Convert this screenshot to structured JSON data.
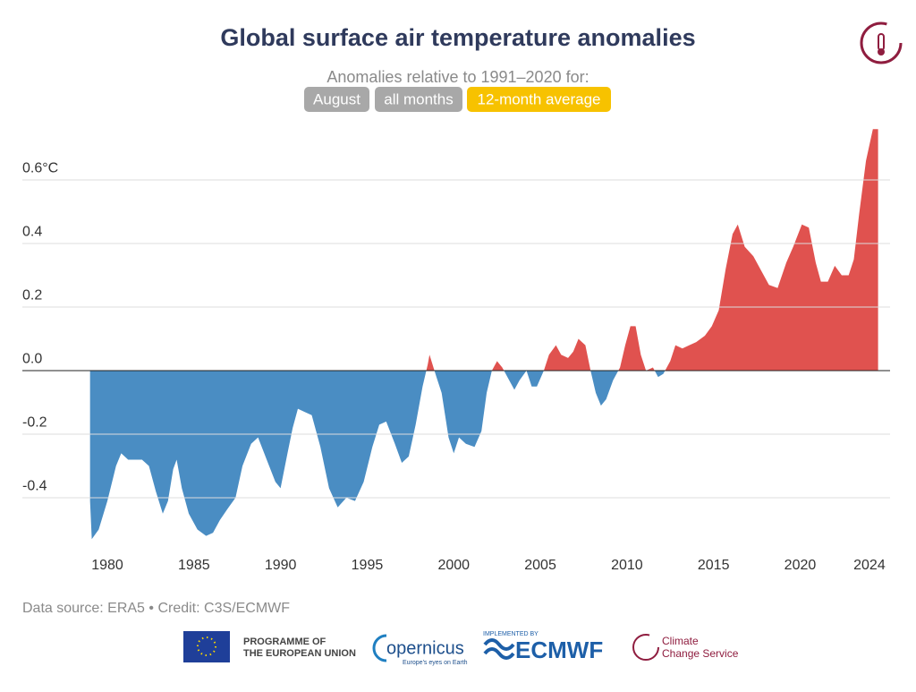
{
  "chart_data": {
    "type": "area",
    "title": "Global surface air temperature anomalies",
    "subtitle": "Anomalies relative to 1991–2020 for:",
    "buttons": [
      "August",
      "all months",
      "12-month average"
    ],
    "x": [
      1979.0,
      1979.1,
      1979.5,
      1980.0,
      1980.5,
      1980.8,
      1981.2,
      1981.6,
      1982.0,
      1982.4,
      1982.8,
      1983.2,
      1983.5,
      1983.8,
      1984.0,
      1984.3,
      1984.7,
      1985.2,
      1985.7,
      1986.1,
      1986.5,
      1987.0,
      1987.4,
      1987.8,
      1988.3,
      1988.7,
      1989.2,
      1989.7,
      1990.0,
      1990.4,
      1990.7,
      1991.0,
      1991.4,
      1991.8,
      1992.3,
      1992.8,
      1993.3,
      1993.8,
      1994.3,
      1994.8,
      1995.3,
      1995.7,
      1996.1,
      1996.6,
      1997.0,
      1997.4,
      1997.8,
      1998.2,
      1998.5,
      1998.6,
      1999.0,
      1999.3,
      1999.7,
      2000.0,
      2000.3,
      2000.7,
      2001.2,
      2001.6,
      2001.9,
      2002.2,
      2002.5,
      2002.8,
      2003.2,
      2003.5,
      2003.8,
      2004.2,
      2004.5,
      2004.8,
      2005.2,
      2005.5,
      2005.9,
      2006.2,
      2006.6,
      2006.9,
      2007.2,
      2007.6,
      2007.9,
      2008.2,
      2008.5,
      2008.8,
      2009.2,
      2009.6,
      2009.9,
      2010.2,
      2010.5,
      2010.8,
      2011.1,
      2011.5,
      2011.8,
      2012.1,
      2012.5,
      2012.8,
      2013.2,
      2013.6,
      2014.0,
      2014.5,
      2014.9,
      2015.3,
      2015.7,
      2016.1,
      2016.4,
      2016.8,
      2017.3,
      2017.7,
      2018.2,
      2018.7,
      2019.2,
      2019.6,
      2020.1,
      2020.5,
      2020.9,
      2021.2,
      2021.6,
      2022.0,
      2022.4,
      2022.8,
      2023.1,
      2023.4,
      2023.8,
      2024.2,
      2024.5
    ],
    "values": [
      -0.41,
      -0.53,
      -0.5,
      -0.41,
      -0.3,
      -0.26,
      -0.28,
      -0.28,
      -0.28,
      -0.3,
      -0.38,
      -0.45,
      -0.41,
      -0.31,
      -0.28,
      -0.37,
      -0.45,
      -0.5,
      -0.52,
      -0.51,
      -0.47,
      -0.43,
      -0.4,
      -0.3,
      -0.23,
      -0.21,
      -0.28,
      -0.35,
      -0.37,
      -0.26,
      -0.18,
      -0.12,
      -0.13,
      -0.14,
      -0.24,
      -0.37,
      -0.43,
      -0.4,
      -0.41,
      -0.35,
      -0.24,
      -0.17,
      -0.16,
      -0.23,
      -0.29,
      -0.27,
      -0.17,
      -0.05,
      0.02,
      0.05,
      -0.02,
      -0.07,
      -0.21,
      -0.26,
      -0.21,
      -0.23,
      -0.24,
      -0.19,
      -0.07,
      0.0,
      0.03,
      0.01,
      -0.03,
      -0.06,
      -0.03,
      0.0,
      -0.05,
      -0.05,
      0.0,
      0.05,
      0.08,
      0.05,
      0.04,
      0.06,
      0.1,
      0.08,
      0.0,
      -0.07,
      -0.11,
      -0.09,
      -0.03,
      0.01,
      0.08,
      0.14,
      0.14,
      0.05,
      0.0,
      0.01,
      -0.02,
      -0.01,
      0.03,
      0.08,
      0.07,
      0.08,
      0.09,
      0.11,
      0.14,
      0.19,
      0.32,
      0.43,
      0.46,
      0.39,
      0.36,
      0.32,
      0.27,
      0.26,
      0.34,
      0.39,
      0.46,
      0.45,
      0.34,
      0.28,
      0.28,
      0.33,
      0.3,
      0.3,
      0.35,
      0.49,
      0.66,
      0.76,
      0.76
    ],
    "colors": {
      "positive": "#e0524f",
      "negative": "#4a8dc3"
    },
    "xlim": [
      1975.35,
      2025.45
    ],
    "xticks": [
      1980,
      1985,
      1990,
      1995,
      2000,
      2005,
      2010,
      2015,
      2020,
      2024
    ],
    "ylim": [
      -0.552,
      0.772
    ],
    "yticks": [
      -0.4,
      -0.2,
      {
        "value": 0,
        "label": "0.0"
      },
      0.2,
      0.4,
      {
        "value": 0.6,
        "label": "0.6°C"
      }
    ],
    "grid": true,
    "source": "Data source: ERA5 • Credit: C3S/ECMWF"
  },
  "footer": {
    "eu": [
      "PROGRAMME OF",
      "THE EUROPEAN UNION"
    ],
    "copernicus": "opernicus",
    "copernicus_tagline": "Europe's eyes on Earth",
    "implemented": "IMPLEMENTED BY",
    "ecmwf": "ECMWF",
    "c3s": [
      "Climate",
      "Change Service"
    ]
  }
}
